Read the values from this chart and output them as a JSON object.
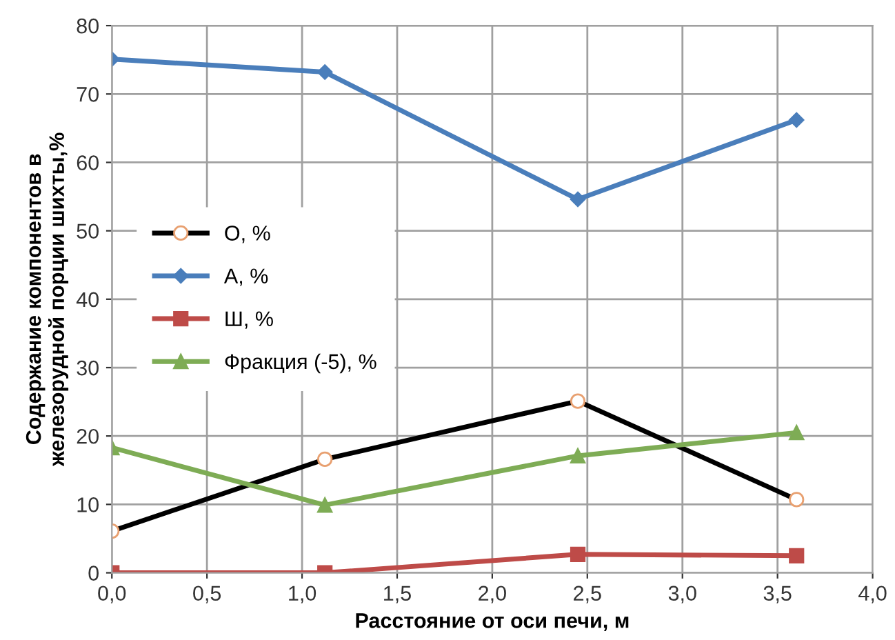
{
  "chart_data": {
    "type": "line",
    "xlabel": "Расстояние от оси печи, м",
    "ylabel": "Содержание компонентов в\nжелезорудной порции шихты,%",
    "x": [
      0,
      1.12,
      2.45,
      3.6
    ],
    "series": [
      {
        "name": "О, %",
        "color": "#000000",
        "marker": "circle",
        "colors": [
          "#e8a070",
          "#e8a070",
          "#e8a070",
          "#e8a070"
        ],
        "values": [
          6.1,
          16.6,
          25.1,
          10.7
        ]
      },
      {
        "name": "А, %",
        "color": "#4a7ebb",
        "marker": "diamond",
        "values": [
          75.1,
          73.2,
          54.6,
          66.2
        ]
      },
      {
        "name": "Ш, %",
        "color": "#be4b48",
        "marker": "square",
        "values": [
          0,
          0,
          2.7,
          2.5
        ]
      },
      {
        "name": "Фракция (-5), %",
        "color": "#7eac55",
        "marker": "triangle",
        "values": [
          18.3,
          9.9,
          17.1,
          20.5
        ]
      }
    ],
    "xlim": [
      0,
      4
    ],
    "xticks": [
      {
        "value": 0,
        "label": "0,0"
      },
      {
        "value": 0.5,
        "label": "0,5"
      },
      {
        "value": 1,
        "label": "1,0"
      },
      {
        "value": 1.5,
        "label": "1,5"
      },
      {
        "value": 2,
        "label": "2,0"
      },
      {
        "value": 2.5,
        "label": "2,5"
      },
      {
        "value": 3,
        "label": "3,0"
      },
      {
        "value": 3.5,
        "label": "3,5"
      },
      {
        "value": 4,
        "label": "4,0"
      }
    ],
    "ylim": [
      0,
      80
    ],
    "yticks": [
      0,
      10,
      20,
      30,
      40,
      50,
      60,
      70,
      80
    ],
    "grid": true,
    "legend": "center left",
    "line_style": "solid"
  }
}
